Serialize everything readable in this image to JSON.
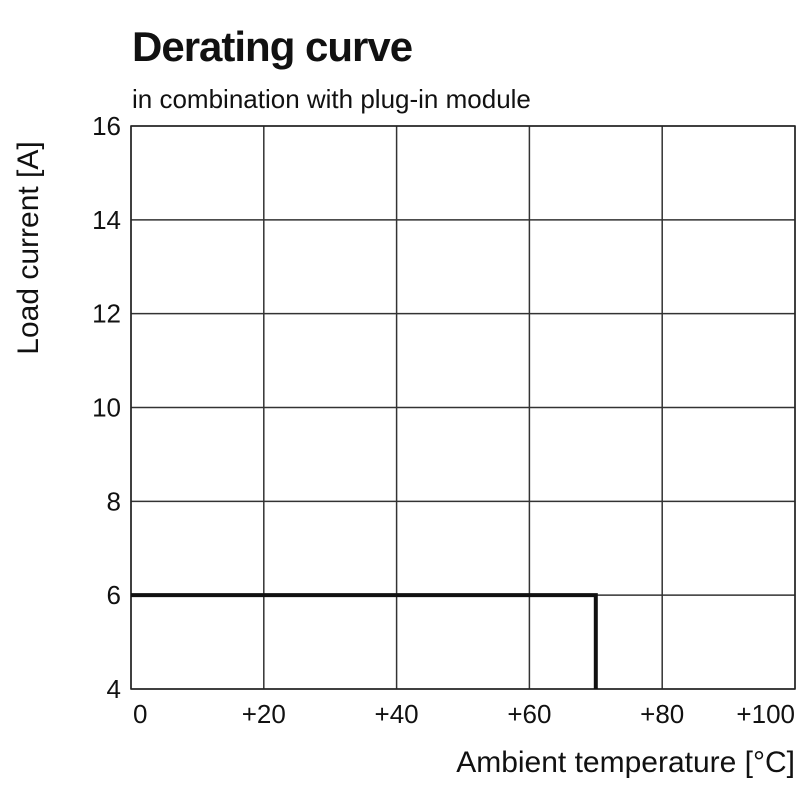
{
  "header": {
    "title": "Derating curve",
    "subtitle": "in combination with plug-in module"
  },
  "chart_data": {
    "type": "line",
    "title": "Derating curve",
    "subtitle": "in combination with plug-in module",
    "xlabel": "Ambient temperature [°C]",
    "ylabel": "Load current [A]",
    "xlim": [
      0,
      100
    ],
    "ylim": [
      4,
      16
    ],
    "x_ticks": [
      0,
      20,
      40,
      60,
      80,
      100
    ],
    "x_tick_labels": [
      "0",
      "+20",
      "+40",
      "+60",
      "+80",
      "+100"
    ],
    "y_ticks": [
      4,
      6,
      8,
      10,
      12,
      14,
      16
    ],
    "y_tick_labels": [
      "4",
      "6",
      "8",
      "10",
      "12",
      "14",
      "16"
    ],
    "grid": true,
    "line_color": "#111111",
    "series": [
      {
        "x": [
          0,
          70,
          70
        ],
        "y": [
          6,
          6,
          4
        ]
      }
    ]
  }
}
